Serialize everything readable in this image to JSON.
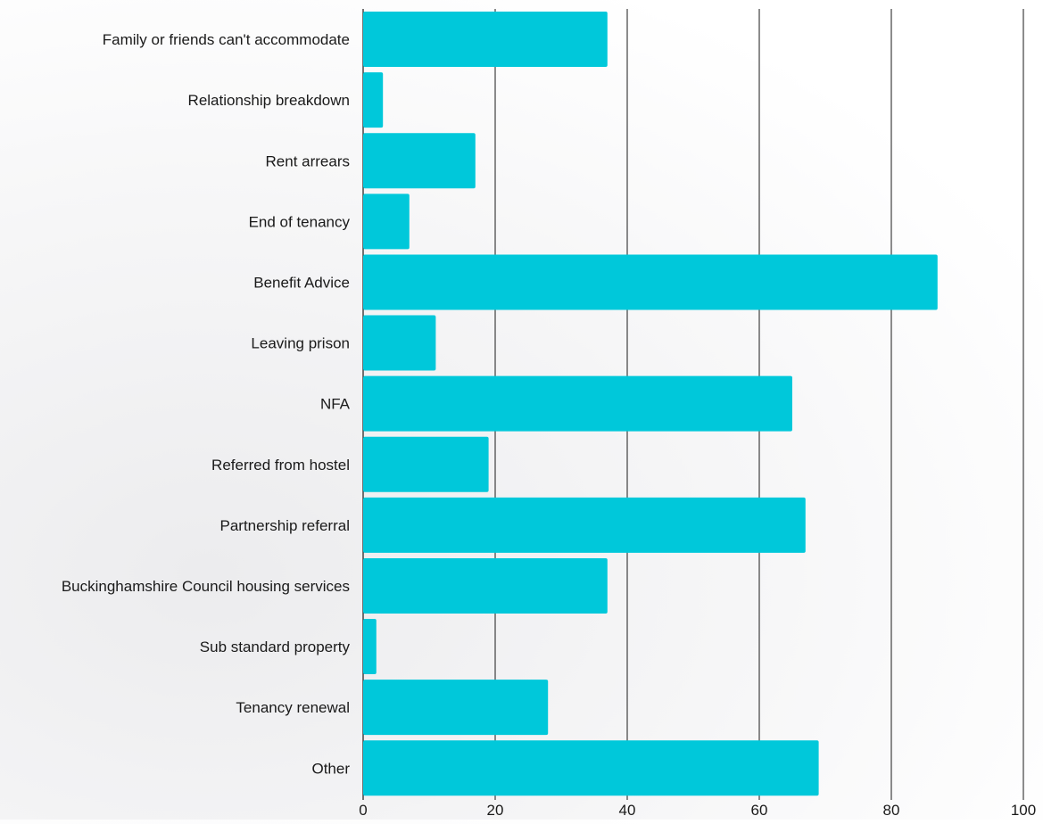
{
  "chart_data": {
    "type": "bar",
    "orientation": "horizontal",
    "categories": [
      "Family or friends can't accommodate",
      "Relationship breakdown",
      "Rent arrears",
      "End of tenancy",
      "Benefit Advice",
      "Leaving prison",
      "NFA",
      "Referred from hostel",
      "Partnership referral",
      "Buckinghamshire Council housing services",
      "Sub standard property",
      "Tenancy renewal",
      "Other"
    ],
    "values": [
      37,
      3,
      17,
      7,
      87,
      11,
      65,
      19,
      67,
      37,
      2,
      28,
      69
    ],
    "xlim": [
      0,
      100
    ],
    "x_ticks": [
      0,
      20,
      40,
      60,
      80,
      100
    ],
    "grid": "vertical",
    "legend": "none",
    "bar_color": "#00c8da",
    "gridline_color": "#1a1a1a"
  }
}
